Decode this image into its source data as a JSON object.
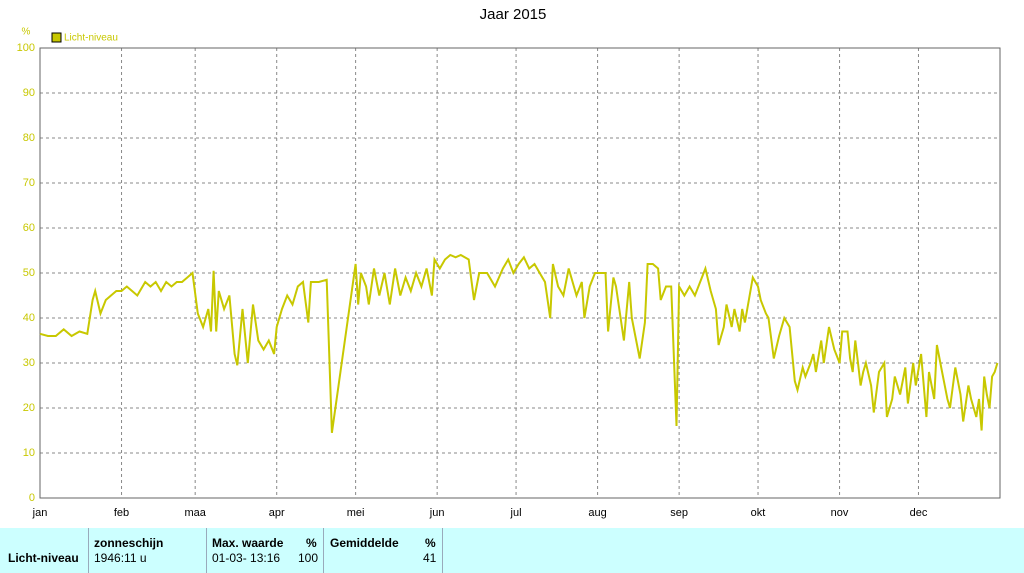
{
  "chart_data": {
    "type": "line",
    "title": "Jaar 2015",
    "y_label": "%",
    "x": [
      0,
      3,
      6,
      9,
      12,
      15,
      18,
      20,
      21,
      23,
      25,
      27,
      29,
      31,
      33,
      35,
      37,
      40,
      42,
      44,
      46,
      48,
      50,
      52,
      54,
      56,
      58,
      60,
      62,
      64,
      65,
      66,
      67,
      68,
      70,
      72,
      74,
      75,
      77,
      79,
      81,
      83,
      85,
      87,
      89,
      90,
      92,
      94,
      96,
      98,
      100,
      102,
      103,
      106,
      109,
      111,
      120,
      121,
      122,
      124,
      125,
      127,
      129,
      131,
      133,
      135,
      137,
      139,
      141,
      143,
      145,
      147,
      149,
      150,
      152,
      154,
      156,
      158,
      160,
      163,
      165,
      167,
      170,
      173,
      176,
      178,
      180,
      182,
      184,
      186,
      188,
      190,
      192,
      194,
      195,
      197,
      199,
      201,
      204,
      206,
      207,
      209,
      211,
      213,
      215,
      216,
      218,
      219,
      222,
      224,
      225,
      228,
      230,
      231,
      233,
      235,
      236,
      238,
      240,
      242,
      243,
      245,
      247,
      249,
      253,
      255,
      257,
      258,
      260,
      261,
      263,
      264,
      266,
      267,
      268,
      271,
      273,
      274,
      276,
      277,
      279,
      281,
      283,
      285,
      287,
      288,
      290,
      291,
      293,
      294,
      295,
      297,
      298,
      300,
      302,
      304,
      305,
      307,
      308,
      309,
      310,
      311,
      312,
      313,
      314,
      316,
      317,
      319,
      321,
      322,
      324,
      325,
      327,
      329,
      330,
      332,
      333,
      335,
      337,
      338,
      340,
      341,
      343,
      345,
      346,
      348,
      350,
      351,
      353,
      354,
      356,
      357,
      358,
      359,
      360,
      361,
      362,
      363,
      364
    ],
    "series": [
      {
        "name": "Licht-niveau",
        "color": "#c8c800",
        "values": [
          36.5,
          36,
          36,
          37.5,
          36,
          37,
          36.5,
          44,
          46,
          41,
          44,
          45,
          46,
          46,
          47,
          46,
          45,
          48,
          47,
          48,
          46,
          48,
          47,
          48,
          48,
          49,
          50,
          41,
          38,
          42,
          37,
          50.5,
          37,
          46,
          42,
          45,
          32,
          29.5,
          42,
          30,
          43,
          35,
          33,
          35,
          32,
          38,
          42,
          45,
          43,
          47,
          48,
          39,
          48,
          48,
          48.5,
          14.5,
          52,
          43,
          50,
          47,
          43,
          51,
          45,
          50,
          43,
          51,
          45,
          49,
          46,
          50,
          47,
          51,
          45,
          53,
          51,
          53,
          54,
          53.5,
          54,
          53,
          44,
          50,
          50,
          47,
          51,
          53,
          50,
          52,
          53.5,
          51,
          52,
          50,
          48,
          40,
          52,
          47,
          45,
          51,
          45,
          48,
          40,
          47,
          50,
          50,
          50,
          37,
          49,
          47,
          35,
          48,
          40,
          31,
          39,
          52,
          52,
          51,
          44,
          47,
          47,
          16,
          47,
          45,
          47,
          45,
          51,
          46,
          42,
          34,
          38,
          43,
          38,
          42,
          37,
          42,
          39,
          49,
          47,
          44,
          41,
          40,
          31,
          36,
          40,
          38,
          26,
          24,
          29,
          27,
          30,
          32,
          28,
          35,
          30,
          38,
          33,
          30,
          37,
          37,
          31,
          28,
          35,
          30,
          25,
          28,
          30,
          25,
          19,
          28,
          30,
          18,
          22,
          27,
          23,
          29,
          21,
          30,
          25,
          32,
          18,
          28,
          22,
          34,
          28,
          22,
          20,
          29,
          23,
          17,
          25,
          22,
          18,
          22,
          15,
          27,
          23,
          20,
          27,
          28,
          30
        ]
      }
    ],
    "xlim": [
      0,
      365
    ],
    "xticks": [
      {
        "value": 0,
        "label": "jan"
      },
      {
        "value": 31,
        "label": "feb"
      },
      {
        "value": 59,
        "label": "maa"
      },
      {
        "value": 90,
        "label": "apr"
      },
      {
        "value": 120,
        "label": "mei"
      },
      {
        "value": 151,
        "label": "jun"
      },
      {
        "value": 181,
        "label": "jul"
      },
      {
        "value": 212,
        "label": "aug"
      },
      {
        "value": 243,
        "label": "sep"
      },
      {
        "value": 273,
        "label": "okt"
      },
      {
        "value": 304,
        "label": "nov"
      },
      {
        "value": 334,
        "label": "dec"
      }
    ],
    "ylim": [
      0,
      100
    ],
    "yticks": [
      0,
      10,
      20,
      30,
      40,
      50,
      60,
      70,
      80,
      90,
      100
    ],
    "grid": true,
    "legend": "top-left"
  },
  "summary_table": {
    "headers": [
      "zonneschijn",
      "Max. waarde",
      "%",
      "Gemiddelde",
      "%"
    ],
    "row": {
      "label": "Licht-niveau",
      "zonneschijn": "1946:11 u",
      "max_time": "01-03- 13:16",
      "max_value": "100",
      "average": "41"
    }
  }
}
